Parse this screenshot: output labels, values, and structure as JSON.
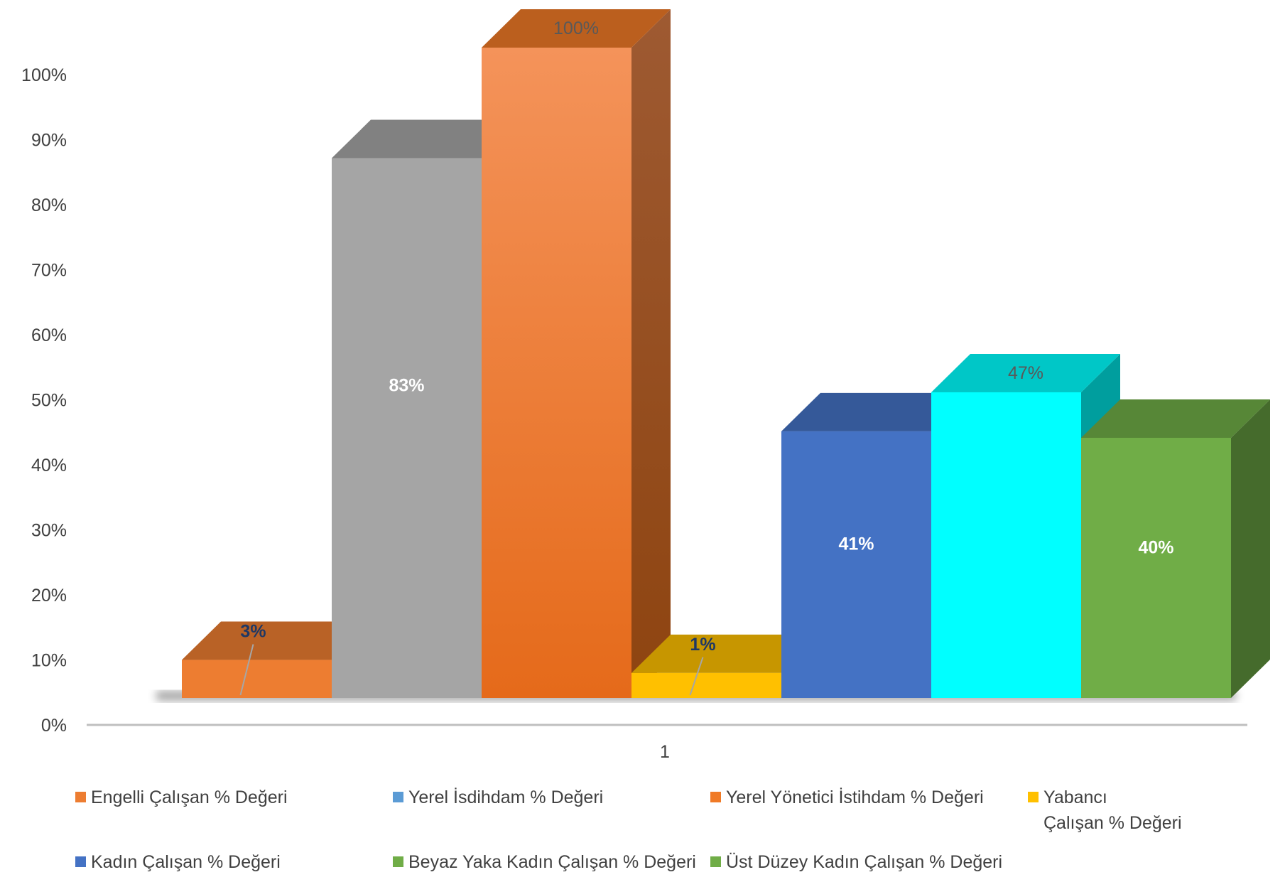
{
  "chart_data": {
    "type": "bar",
    "categories": [
      "1"
    ],
    "ylim": [
      0,
      1.0
    ],
    "y_ticks": [
      "0%",
      "10%",
      "20%",
      "30%",
      "40%",
      "50%",
      "60%",
      "70%",
      "80%",
      "90%",
      "100%"
    ],
    "grid": false,
    "legend_position": "bottom",
    "series": [
      {
        "name": "Engelli Çalışan % Değeri",
        "value": 0.03,
        "label": "3%",
        "color": "#ED7D31"
      },
      {
        "name": "Yerel İsdihdam % Değeri",
        "value": 0.83,
        "label": "83%",
        "color": "#A5A5A5",
        "legend_color": "#5B9BD5"
      },
      {
        "name": "Yerel Yönetici İstihdam % Değeri",
        "value": 1.0,
        "label": "100%",
        "color": "#F07A26"
      },
      {
        "name": "Yabancı Çalışan % Değeri",
        "value": 0.01,
        "label": "1%",
        "color": "#FFC000"
      },
      {
        "name": "Kadın Çalışan % Değeri",
        "value": 0.41,
        "label": "41%",
        "color": "#4472C4"
      },
      {
        "name": "Beyaz Yaka Kadın Çalışan % Değeri",
        "value": 0.47,
        "label": "47%",
        "color": "#00FFFF",
        "legend_color": "#70AD47"
      },
      {
        "name": "Üst Düzey Kadın Çalışan % Değeri",
        "value": 0.4,
        "label": "40%",
        "color": "#70AD47"
      }
    ]
  }
}
